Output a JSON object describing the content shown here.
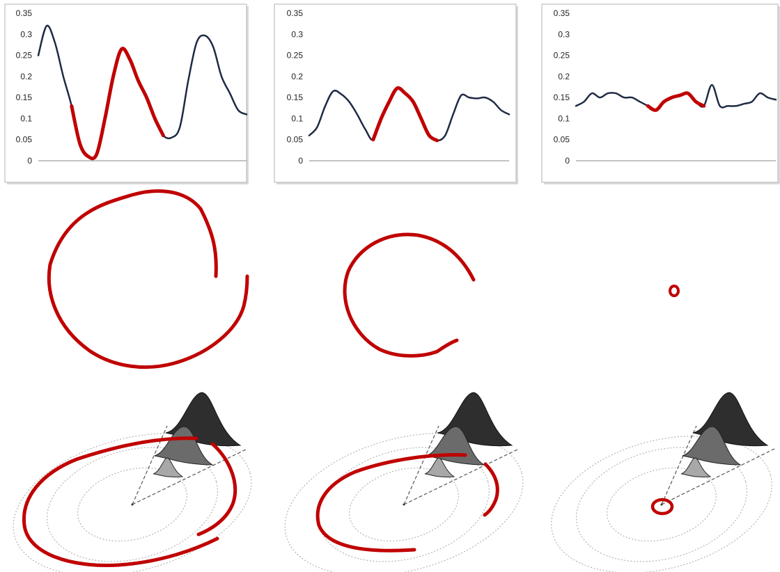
{
  "chart_data": [
    {
      "type": "line",
      "y_ticks": [
        "0.35",
        "0.3",
        "0.25",
        "0.2",
        "0.15",
        "0.1",
        "0.05",
        "0"
      ],
      "ylim": [
        0,
        0.35
      ],
      "grid": false,
      "x": [
        0,
        4,
        8,
        12,
        16,
        20,
        24,
        28,
        32,
        36,
        40,
        44,
        48,
        52,
        56,
        60,
        64,
        68,
        72,
        76,
        80,
        84,
        88,
        92,
        96,
        100
      ],
      "values": [
        0.25,
        0.32,
        0.28,
        0.2,
        0.13,
        0.04,
        0.01,
        0.015,
        0.1,
        0.2,
        0.265,
        0.24,
        0.19,
        0.15,
        0.1,
        0.06,
        0.055,
        0.08,
        0.19,
        0.28,
        0.297,
        0.27,
        0.2,
        0.16,
        0.12,
        0.11
      ],
      "series": [
        {
          "name": "",
          "color": "#1f2a44",
          "x_range": [
            0,
            100
          ]
        },
        {
          "name": "",
          "color": "#c00000",
          "x_range": [
            16,
            60
          ]
        }
      ]
    },
    {
      "type": "line",
      "y_ticks": [
        "0.35",
        "0.3",
        "0.25",
        "0.2",
        "0.15",
        "0.1",
        "0.05",
        "0"
      ],
      "ylim": [
        0,
        0.35
      ],
      "grid": false,
      "x": [
        0,
        4,
        8,
        12,
        16,
        20,
        24,
        28,
        32,
        36,
        40,
        44,
        48,
        52,
        56,
        60,
        64,
        68,
        72,
        76,
        80,
        84,
        88,
        92,
        96,
        100
      ],
      "values": [
        0.06,
        0.08,
        0.13,
        0.165,
        0.158,
        0.14,
        0.11,
        0.075,
        0.05,
        0.1,
        0.14,
        0.172,
        0.16,
        0.14,
        0.1,
        0.06,
        0.048,
        0.06,
        0.11,
        0.155,
        0.15,
        0.148,
        0.15,
        0.14,
        0.12,
        0.11
      ],
      "series": [
        {
          "name": "",
          "color": "#1f2a44",
          "x_range": [
            0,
            100
          ]
        },
        {
          "name": "",
          "color": "#c00000",
          "x_range": [
            30,
            65
          ]
        }
      ]
    },
    {
      "type": "line",
      "y_ticks": [
        "0.35",
        "0.3",
        "0.25",
        "0.2",
        "0.15",
        "0.1",
        "0.05",
        "0"
      ],
      "ylim": [
        0,
        0.35
      ],
      "grid": false,
      "x": [
        0,
        4,
        8,
        12,
        16,
        20,
        24,
        28,
        32,
        36,
        40,
        44,
        48,
        52,
        56,
        60,
        64,
        68,
        72,
        76,
        80,
        84,
        88,
        92,
        96,
        100
      ],
      "values": [
        0.13,
        0.14,
        0.16,
        0.15,
        0.16,
        0.16,
        0.15,
        0.15,
        0.14,
        0.13,
        0.12,
        0.14,
        0.15,
        0.155,
        0.16,
        0.14,
        0.13,
        0.18,
        0.13,
        0.13,
        0.13,
        0.135,
        0.14,
        0.16,
        0.15,
        0.145
      ],
      "series": [
        {
          "name": "",
          "color": "#1f2a44",
          "x_range": [
            0,
            100
          ]
        },
        {
          "name": "",
          "color": "#c00000",
          "x_range": [
            36,
            64
          ]
        }
      ]
    }
  ],
  "colors": {
    "signal_line": "#1f2a44",
    "highlight": "#c00000",
    "peak_dark": "#2e2e2e",
    "peak_mid": "#6b6b6b",
    "peak_light": "#a8a8a8",
    "orbit_ring": "#b3b3b3"
  }
}
